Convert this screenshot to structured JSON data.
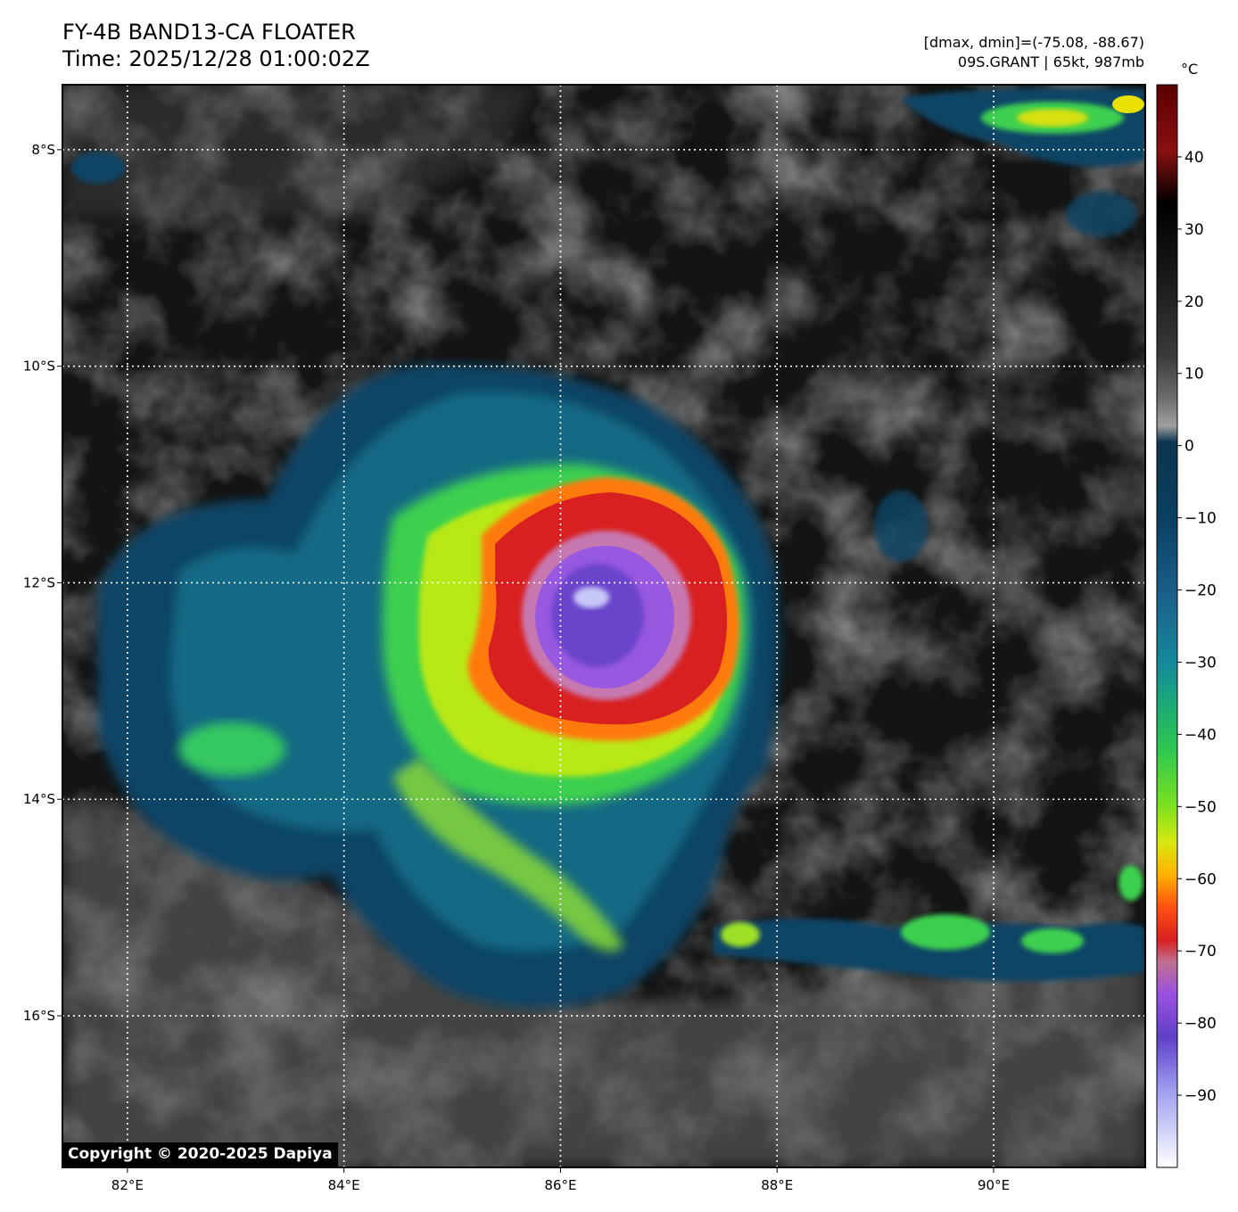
{
  "header": {
    "title_line1": "FY-4B BAND13-CA FLOATER",
    "title_line2": "Time: 2025/12/28 01:00:02Z",
    "stats_line": "[dmax, dmin]=(-75.08, -88.67)",
    "storm_line": "09S.GRANT | 65kt, 987mb"
  },
  "colorbar": {
    "unit": "°C",
    "ticks": [
      "40",
      "30",
      "20",
      "10",
      "0",
      "−10",
      "−20",
      "−30",
      "−40",
      "−50",
      "−60",
      "−70",
      "−80",
      "−90"
    ],
    "range": [
      -100,
      50
    ]
  },
  "map": {
    "lon_ticks": [
      "82°E",
      "84°E",
      "86°E",
      "88°E",
      "90°E"
    ],
    "lat_ticks": [
      "8°S",
      "10°S",
      "12°S",
      "14°S",
      "16°S"
    ],
    "lon_range": [
      81.4,
      91.4
    ],
    "lat_range": [
      -17.4,
      -7.4
    ],
    "storm_center": {
      "lon": 86.3,
      "lat": -12.1
    }
  },
  "copyright": "Copyright © 2020-2025 Dapiya"
}
